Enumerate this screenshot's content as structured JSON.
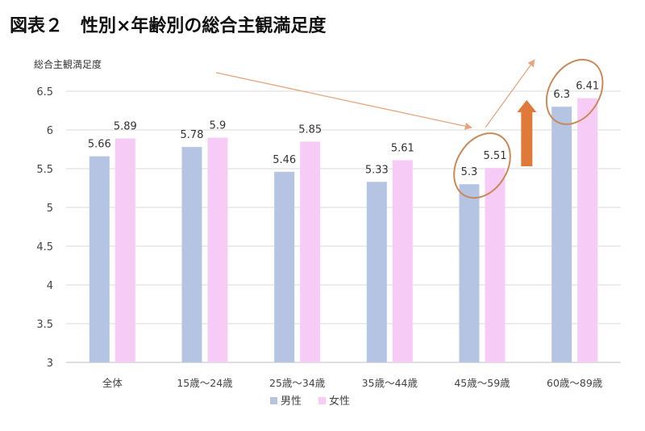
{
  "title": "図表２　性別×年齢別の総合主観満足度",
  "chart_data": {
    "type": "bar",
    "ylabel": "総合主観満足度",
    "ylim": [
      3,
      6.5
    ],
    "yticks": [
      3,
      3.5,
      4,
      4.5,
      5,
      5.5,
      6,
      6.5
    ],
    "grid": true,
    "categories": [
      "全体",
      "15歳～24歳",
      "25歳～34歳",
      "35歳～44歳",
      "45歳～59歳",
      "60歳～89歳"
    ],
    "series": [
      {
        "name": "男性",
        "color": "#b4c4e2",
        "values": [
          5.66,
          5.78,
          5.46,
          5.33,
          5.3,
          6.3
        ]
      },
      {
        "name": "女性",
        "color": "#f6ccf6",
        "values": [
          5.89,
          5.9,
          5.85,
          5.61,
          5.51,
          6.41
        ]
      }
    ],
    "legend": "bottom",
    "annotations": {
      "circled_categories": [
        "45歳～59歳",
        "60歳～89歳"
      ],
      "circle_color": "#c98a58",
      "arrow_color": "#e07a3a",
      "thin_arrow_color": "#e8a47c"
    }
  }
}
